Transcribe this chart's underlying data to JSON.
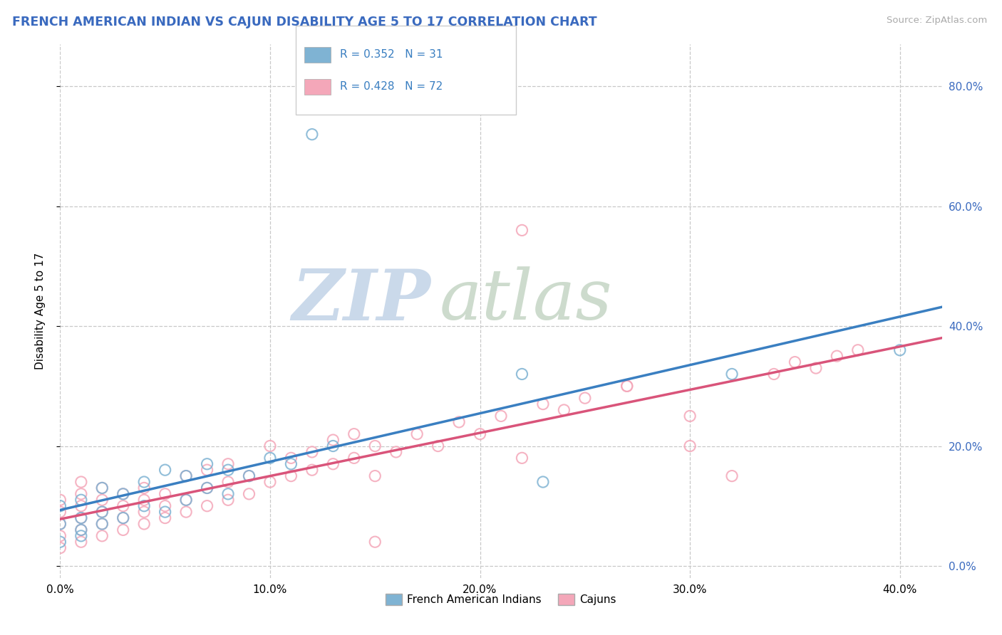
{
  "title": "FRENCH AMERICAN INDIAN VS CAJUN DISABILITY AGE 5 TO 17 CORRELATION CHART",
  "source": "Source: ZipAtlas.com",
  "ylabel": "Disability Age 5 to 17",
  "xlim": [
    0.0,
    0.42
  ],
  "ylim": [
    -0.02,
    0.87
  ],
  "xticks": [
    0.0,
    0.1,
    0.2,
    0.3,
    0.4
  ],
  "yticks_right": [
    0.0,
    0.2,
    0.4,
    0.6,
    0.8
  ],
  "legend_r_blue": "R = 0.352",
  "legend_n_blue": "N = 31",
  "legend_r_pink": "R = 0.428",
  "legend_n_pink": "N = 72",
  "blue_scatter_color": "#7fb3d3",
  "pink_scatter_color": "#f4a7b9",
  "blue_line_color": "#3a7fc1",
  "pink_line_color": "#d9547a",
  "title_color": "#3a6abf",
  "source_color": "#aaaaaa",
  "watermark_zip": "ZIP",
  "watermark_atlas": "atlas",
  "watermark_color_zip": "#c5d5e8",
  "watermark_color_atlas": "#c8d8c8",
  "blue_x": [
    0.0,
    0.0,
    0.0,
    0.01,
    0.01,
    0.01,
    0.01,
    0.02,
    0.02,
    0.02,
    0.03,
    0.03,
    0.04,
    0.04,
    0.05,
    0.05,
    0.06,
    0.06,
    0.07,
    0.07,
    0.08,
    0.08,
    0.09,
    0.1,
    0.11,
    0.12,
    0.13,
    0.22,
    0.23,
    0.32,
    0.4
  ],
  "blue_y": [
    0.04,
    0.07,
    0.1,
    0.05,
    0.08,
    0.11,
    0.06,
    0.07,
    0.09,
    0.13,
    0.08,
    0.12,
    0.1,
    0.14,
    0.09,
    0.16,
    0.11,
    0.15,
    0.13,
    0.17,
    0.12,
    0.16,
    0.15,
    0.18,
    0.17,
    0.72,
    0.2,
    0.32,
    0.14,
    0.32,
    0.36
  ],
  "pink_x": [
    0.0,
    0.0,
    0.0,
    0.0,
    0.0,
    0.01,
    0.01,
    0.01,
    0.01,
    0.01,
    0.01,
    0.02,
    0.02,
    0.02,
    0.02,
    0.02,
    0.03,
    0.03,
    0.03,
    0.03,
    0.04,
    0.04,
    0.04,
    0.04,
    0.05,
    0.05,
    0.05,
    0.06,
    0.06,
    0.06,
    0.07,
    0.07,
    0.07,
    0.08,
    0.08,
    0.08,
    0.09,
    0.09,
    0.1,
    0.1,
    0.11,
    0.11,
    0.12,
    0.12,
    0.13,
    0.13,
    0.14,
    0.14,
    0.15,
    0.15,
    0.16,
    0.17,
    0.18,
    0.19,
    0.2,
    0.21,
    0.22,
    0.23,
    0.24,
    0.25,
    0.27,
    0.3,
    0.32,
    0.34,
    0.35,
    0.36,
    0.37,
    0.38,
    0.22,
    0.27,
    0.3,
    0.15
  ],
  "pink_y": [
    0.03,
    0.05,
    0.07,
    0.09,
    0.11,
    0.04,
    0.06,
    0.08,
    0.1,
    0.12,
    0.14,
    0.05,
    0.07,
    0.09,
    0.11,
    0.13,
    0.06,
    0.08,
    0.1,
    0.12,
    0.07,
    0.09,
    0.11,
    0.13,
    0.08,
    0.1,
    0.12,
    0.09,
    0.11,
    0.15,
    0.1,
    0.13,
    0.16,
    0.11,
    0.14,
    0.17,
    0.12,
    0.15,
    0.14,
    0.2,
    0.15,
    0.18,
    0.16,
    0.19,
    0.17,
    0.21,
    0.18,
    0.22,
    0.15,
    0.2,
    0.19,
    0.22,
    0.2,
    0.24,
    0.22,
    0.25,
    0.56,
    0.27,
    0.26,
    0.28,
    0.3,
    0.2,
    0.15,
    0.32,
    0.34,
    0.33,
    0.35,
    0.36,
    0.18,
    0.3,
    0.25,
    0.04
  ],
  "blue_line_x0": 0.0,
  "blue_line_x1": 0.42,
  "blue_line_y0": 0.06,
  "blue_line_y1": 0.36,
  "pink_line_x0": 0.0,
  "pink_line_x1": 0.42,
  "pink_line_y0": 0.04,
  "pink_line_y1": 0.34
}
